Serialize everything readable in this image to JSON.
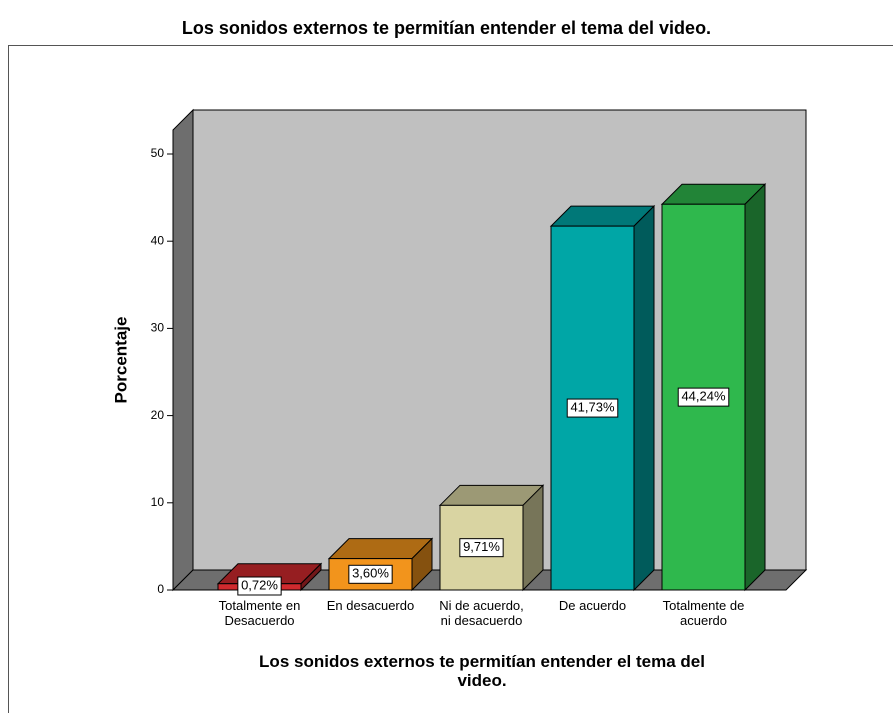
{
  "chart_data": {
    "type": "bar3d",
    "title": "Los sonidos externos te permitían entender el tema del video.",
    "x_label": "Los sonidos externos te permitían entender el tema del\nvideo.",
    "y_label": "Porcentaje",
    "categories": [
      "Totalmente en\nDesacuerdo",
      "En desacuerdo",
      "Ni de acuerdo,\nni desacuerdo",
      "De acuerdo",
      "Totalmente de\nacuerdo"
    ],
    "values": [
      0.72,
      3.6,
      9.71,
      41.73,
      44.24
    ],
    "value_labels": [
      "0,72%",
      "3,60%",
      "9,71%",
      "41,73%",
      "44,24%"
    ],
    "colors": [
      "#d02a2e",
      "#f2941c",
      "#d9d4a2",
      "#00a6a6",
      "#2fb84d"
    ],
    "ylim": [
      0,
      50
    ],
    "yticks": [
      0,
      10,
      20,
      30,
      40,
      50
    ]
  }
}
